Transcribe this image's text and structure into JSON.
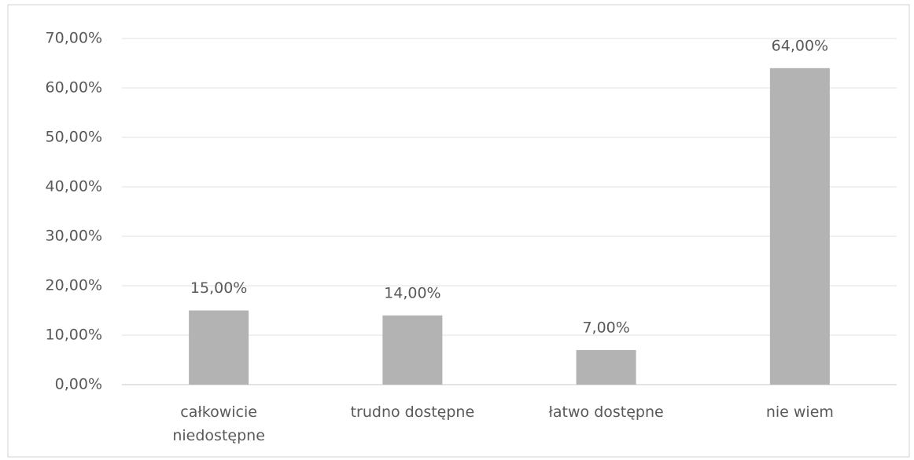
{
  "chart_data": {
    "type": "bar",
    "categories": [
      "całkowicie niedostępne",
      "trudno dostępne",
      "łatwo dostępne",
      "nie wiem"
    ],
    "values": [
      15,
      14,
      7,
      64
    ],
    "value_labels": [
      "15,00%",
      "14,00%",
      "7,00%",
      "64,00%"
    ],
    "color": "#b3b3b3",
    "ylim": [
      0,
      70
    ],
    "yticks": [
      {
        "value": 0,
        "label": "0,00%"
      },
      {
        "value": 10,
        "label": "10,00%"
      },
      {
        "value": 20,
        "label": "20,00%"
      },
      {
        "value": 30,
        "label": "30,00%"
      },
      {
        "value": 40,
        "label": "40,00%"
      },
      {
        "value": 50,
        "label": "50,00%"
      },
      {
        "value": 60,
        "label": "60,00%"
      },
      {
        "value": 70,
        "label": "70,00%"
      }
    ],
    "grid": true
  }
}
